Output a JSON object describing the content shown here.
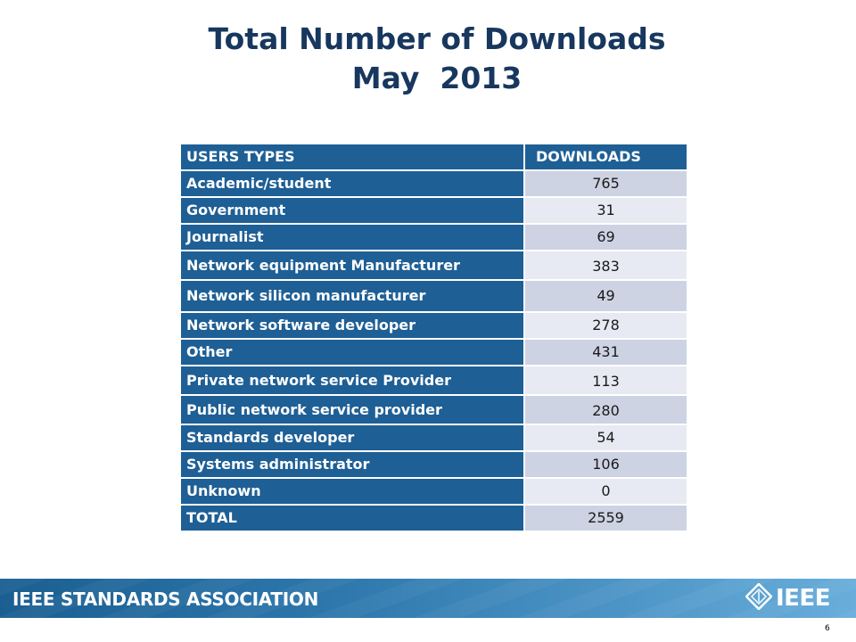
{
  "title": {
    "line1": "Total Number of Downloads",
    "line2": "May  2013"
  },
  "table": {
    "headers": [
      "USERS TYPES",
      "DOWNLOADS"
    ],
    "rows": [
      {
        "type": "Academic/student",
        "downloads": "765"
      },
      {
        "type": "Government",
        "downloads": "31"
      },
      {
        "type": "Journalist",
        "downloads": "69"
      },
      {
        "type": "Network equipment Manufacturer",
        "downloads": "383"
      },
      {
        "type": "Network silicon manufacturer",
        "downloads": "49"
      },
      {
        "type": "Network software developer",
        "downloads": "278"
      },
      {
        "type": "Other",
        "downloads": "431"
      },
      {
        "type": "Private network service Provider",
        "downloads": "113"
      },
      {
        "type": "Public network service provider",
        "downloads": "280"
      },
      {
        "type": "Standards developer",
        "downloads": "54"
      },
      {
        "type": "Systems administrator",
        "downloads": "106"
      },
      {
        "type": "Unknown",
        "downloads": "0"
      },
      {
        "type": "TOTAL",
        "downloads": "2559"
      }
    ]
  },
  "footer": {
    "association": "IEEE STANDARDS ASSOCIATION",
    "logo_text": "IEEE",
    "logo_icon": "ieee-diamond-icon",
    "page_number": "6"
  },
  "colors": {
    "header_blue": "#1e5f95",
    "title_navy": "#17375e",
    "row_light": "#e7eaf2",
    "row_dark": "#cdd3e3"
  }
}
